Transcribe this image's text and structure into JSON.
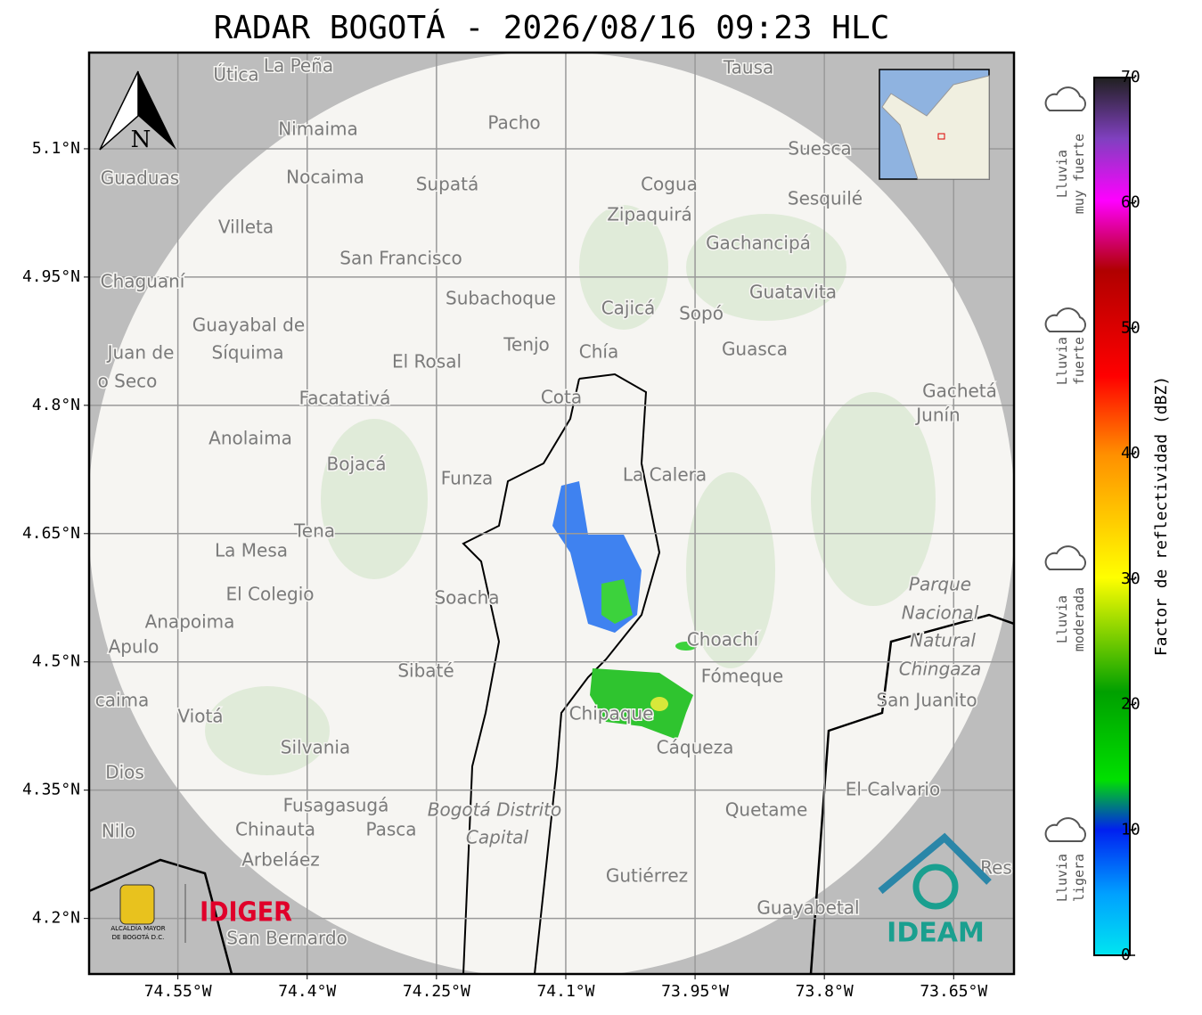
{
  "map": {
    "title": "RADAR BOGOTÁ - 2026/08/16 09:23 HLC",
    "north": "N",
    "lon_range": [
      -74.653,
      -73.58
    ],
    "lat_range": [
      4.135,
      5.2125
    ],
    "lon_ticks": [
      {
        "value": -74.55,
        "label": "74.55°W"
      },
      {
        "value": -74.4,
        "label": "74.4°W"
      },
      {
        "value": -74.25,
        "label": "74.25°W"
      },
      {
        "value": -74.1,
        "label": "74.1°W"
      },
      {
        "value": -73.95,
        "label": "73.95°W"
      },
      {
        "value": -73.8,
        "label": "73.8°W"
      },
      {
        "value": -73.65,
        "label": "73.65°W"
      }
    ],
    "lat_ticks": [
      {
        "value": 5.1,
        "label": "5.1°N"
      },
      {
        "value": 4.95,
        "label": "4.95°N"
      },
      {
        "value": 4.8,
        "label": "4.8°N"
      },
      {
        "value": 4.65,
        "label": "4.65°N"
      },
      {
        "value": 4.5,
        "label": "4.5°N"
      },
      {
        "value": 4.35,
        "label": "4.35°N"
      },
      {
        "value": 4.2,
        "label": "4.2°N"
      }
    ],
    "places": [
      "Útica",
      "La Peña",
      "Tausa",
      "Pacho",
      "Nimaima",
      "Guaduas",
      "Nocaima",
      "Supatá",
      "Cogua",
      "Suesca",
      "Sesquilé",
      "Zipaquirá",
      "Villeta",
      "Gachancipá",
      "San Francisco",
      "Chaguaní",
      "Subachoque",
      "Guatavita",
      "Cajicá",
      "Sopó",
      "Guayabal de",
      "Síquima",
      "Juan de",
      "o Seco",
      "Tenjo",
      "Chía",
      "Guasca",
      "El Rosal",
      "Facatativá",
      "Cota",
      "Gachetá",
      "Junín",
      "Anolaima",
      "Bojacá",
      "Funza",
      "La Calera",
      "Tena",
      "La Mesa",
      "Parque",
      "Nacional",
      "Natural",
      "Chingaza",
      "El Colegio",
      "Soacha",
      "Anapoima",
      "Apulo",
      "Choachí",
      "Sibaté",
      "Fómeque",
      "San Juanito",
      "caima",
      "Viotá",
      "Chipaque",
      "Silvania",
      "Cáqueza",
      "Dios",
      "El Calvario",
      "Fusagasugá",
      "Bogotá Distrito",
      "Capital",
      "Quetame",
      "Nilo",
      "Chinauta",
      "Pasca",
      "Arbeláez",
      "Gutiérrez",
      "Res",
      "Guayabetal",
      "San Bernardo"
    ],
    "logos": {
      "alcaldia": [
        "ALCALDÍA MAYOR",
        "DE BOGOTÁ D.C."
      ],
      "idiger": "IDIGER",
      "ideam": "IDEAM"
    },
    "colorbar": {
      "label": "Factor de reflectividad (dBZ)",
      "range": [
        0,
        70
      ],
      "ticks": [
        0,
        10,
        20,
        30,
        40,
        50,
        60,
        70
      ],
      "categories": [
        [
          "Lluvia",
          "muy fuerte"
        ],
        [
          "Lluvia",
          "fuerte"
        ],
        [
          "Lluvia",
          "moderada"
        ],
        [
          "Lluvia",
          "ligera"
        ]
      ]
    }
  }
}
